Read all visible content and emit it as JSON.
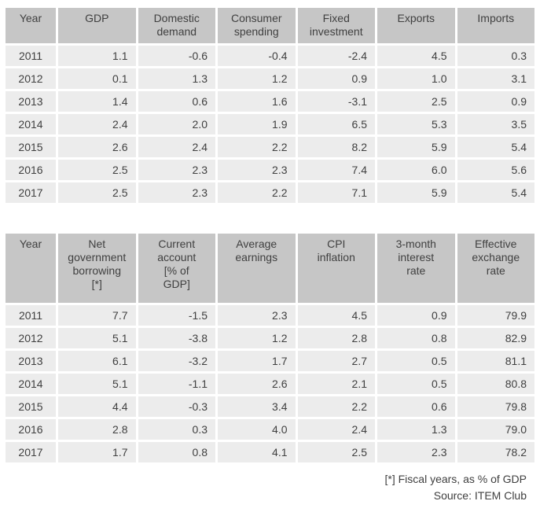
{
  "colors": {
    "header_bg": "#c6c6c6",
    "row_bg": "#ececec",
    "year_bg": "#ffe600",
    "text": "#404040",
    "gap": "#ffffff"
  },
  "tables": [
    {
      "name": "annual-growth-table",
      "columns": [
        "Year",
        "GDP",
        "Domestic\ndemand",
        "Consumer\nspending",
        "Fixed\ninvestment",
        "Exports",
        "Imports"
      ],
      "rows": [
        {
          "year": "2011",
          "values": [
            "1.1",
            "-0.6",
            "-0.4",
            "-2.4",
            "4.5",
            "0.3"
          ]
        },
        {
          "year": "2012",
          "values": [
            "0.1",
            "1.3",
            "1.2",
            "0.9",
            "1.0",
            "3.1"
          ]
        },
        {
          "year": "2013",
          "values": [
            "1.4",
            "0.6",
            "1.6",
            "-3.1",
            "2.5",
            "0.9"
          ]
        },
        {
          "year": "2014",
          "values": [
            "2.4",
            "2.0",
            "1.9",
            "6.5",
            "5.3",
            "3.5"
          ]
        },
        {
          "year": "2015",
          "values": [
            "2.6",
            "2.4",
            "2.2",
            "8.2",
            "5.9",
            "5.4"
          ]
        },
        {
          "year": "2016",
          "values": [
            "2.5",
            "2.3",
            "2.3",
            "7.4",
            "6.0",
            "5.6"
          ]
        },
        {
          "year": "2017",
          "values": [
            "2.5",
            "2.3",
            "2.2",
            "7.1",
            "5.9",
            "5.4"
          ]
        }
      ]
    },
    {
      "name": "fiscal-monetary-table",
      "columns": [
        "Year",
        "Net\ngovernment\nborrowing\n[*]",
        "Current\naccount\n[% of\nGDP]",
        "Average\nearnings",
        "CPI\ninflation",
        "3-month\ninterest\nrate",
        "Effective\nexchange\nrate"
      ],
      "rows": [
        {
          "year": "2011",
          "values": [
            "7.7",
            "-1.5",
            "2.3",
            "4.5",
            "0.9",
            "79.9"
          ]
        },
        {
          "year": "2012",
          "values": [
            "5.1",
            "-3.8",
            "1.2",
            "2.8",
            "0.8",
            "82.9"
          ]
        },
        {
          "year": "2013",
          "values": [
            "6.1",
            "-3.2",
            "1.7",
            "2.7",
            "0.5",
            "81.1"
          ]
        },
        {
          "year": "2014",
          "values": [
            "5.1",
            "-1.1",
            "2.6",
            "2.1",
            "0.5",
            "80.8"
          ]
        },
        {
          "year": "2015",
          "values": [
            "4.4",
            "-0.3",
            "3.4",
            "2.2",
            "0.6",
            "79.8"
          ]
        },
        {
          "year": "2016",
          "values": [
            "2.8",
            "0.3",
            "4.0",
            "2.4",
            "1.3",
            "79.0"
          ]
        },
        {
          "year": "2017",
          "values": [
            "1.7",
            "0.8",
            "4.1",
            "2.5",
            "2.3",
            "78.2"
          ]
        }
      ]
    }
  ],
  "footer": {
    "footnote": "[*] Fiscal years, as % of GDP",
    "source": "Source: ITEM Club"
  }
}
